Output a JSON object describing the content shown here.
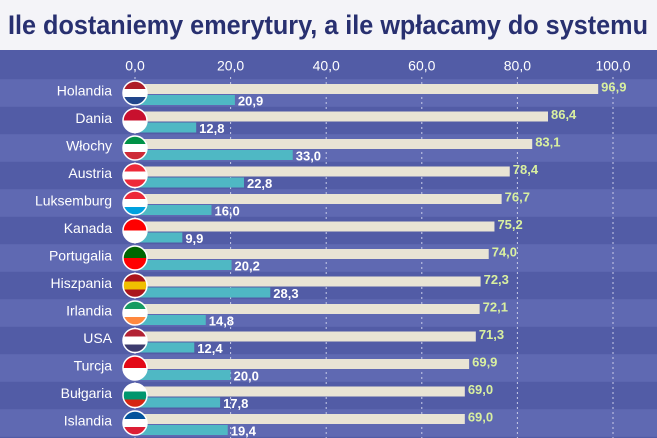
{
  "chart_data": {
    "type": "bar",
    "orientation": "horizontal",
    "title": "Ile dostaniemy emerytury, a ile wpłacamy do systemu",
    "categories": [
      "Holandia",
      "Dania",
      "Włochy",
      "Austria",
      "Luksemburg",
      "Kanada",
      "Portugalia",
      "Hiszpania",
      "Irlandia",
      "USA",
      "Turcja",
      "Bułgaria",
      "Islandia"
    ],
    "series": [
      {
        "color": "#e9e4d4",
        "values": [
          96.9,
          86.4,
          83.1,
          78.4,
          76.7,
          75.2,
          74.0,
          72.3,
          72.1,
          71.3,
          69.9,
          69.0,
          69.0
        ],
        "value_labels": [
          "96,9",
          "86,4",
          "83,1",
          "78,4",
          "76,7",
          "75,2",
          "74,0",
          "72,3",
          "72,1",
          "71,3",
          "69,9",
          "69,0",
          "69,0"
        ]
      },
      {
        "color": "#4fb8c4",
        "values": [
          20.9,
          12.8,
          33.0,
          22.8,
          16.0,
          9.9,
          20.2,
          28.3,
          14.8,
          12.4,
          20.0,
          17.8,
          19.4
        ],
        "value_labels": [
          "20,9",
          "12,8",
          "33,0",
          "22,8",
          "16,0",
          "9,9",
          "20,2",
          "28,3",
          "14,8",
          "12,4",
          "20,0",
          "17,8",
          "19,4"
        ]
      }
    ],
    "xlim": [
      0,
      100
    ],
    "xticks": [
      {
        "value": 0,
        "label": "0,0"
      },
      {
        "value": 20,
        "label": "20,0"
      },
      {
        "value": 40,
        "label": "40,0"
      },
      {
        "value": 60,
        "label": "60,0"
      },
      {
        "value": 80,
        "label": "80,0"
      },
      {
        "value": 100,
        "label": "100,0"
      }
    ],
    "grid": true
  }
}
